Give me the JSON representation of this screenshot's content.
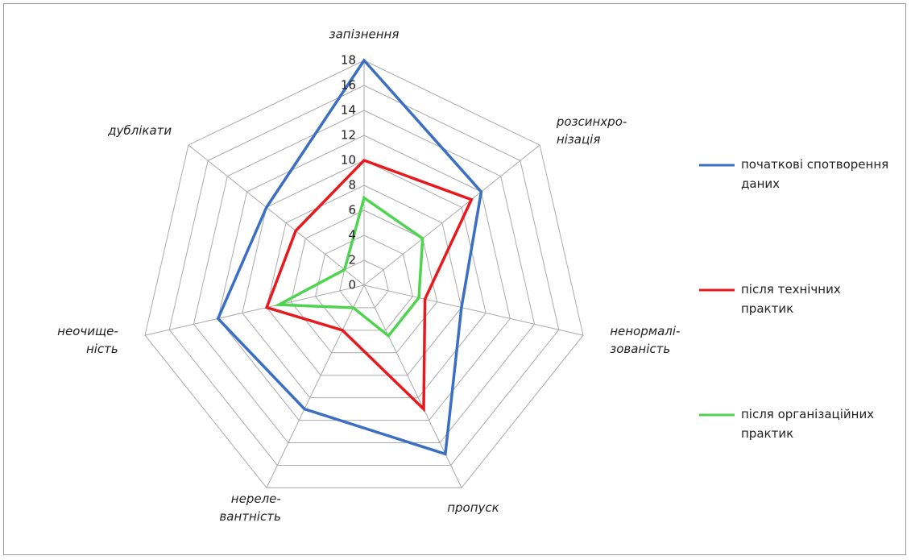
{
  "chart_data": {
    "type": "radar",
    "categories": [
      [
        "запізнення"
      ],
      [
        "розсинхро-",
        "нізація"
      ],
      [
        "ненормалі-",
        "зованість"
      ],
      [
        "пропуск"
      ],
      [
        "нереле-",
        "вантність"
      ],
      [
        "неочище-",
        "ність"
      ],
      [
        "дублікати"
      ]
    ],
    "series": [
      {
        "name": "початкові спотворення даних",
        "color": "#3b6fc4",
        "values": [
          18,
          12,
          8,
          15,
          11,
          12,
          10
        ]
      },
      {
        "name": "після технічних практик",
        "color": "#e8191c",
        "values": [
          10,
          11,
          5,
          11,
          4,
          8,
          7
        ]
      },
      {
        "name": "після організаційних практик",
        "color": "#4fd44f",
        "values": [
          7,
          6,
          4.5,
          4.5,
          2,
          7,
          2
        ]
      }
    ],
    "ylim": [
      0,
      18
    ],
    "yticks": [
      0,
      2,
      4,
      6,
      8,
      10,
      12,
      14,
      16,
      18
    ],
    "grid": true
  }
}
